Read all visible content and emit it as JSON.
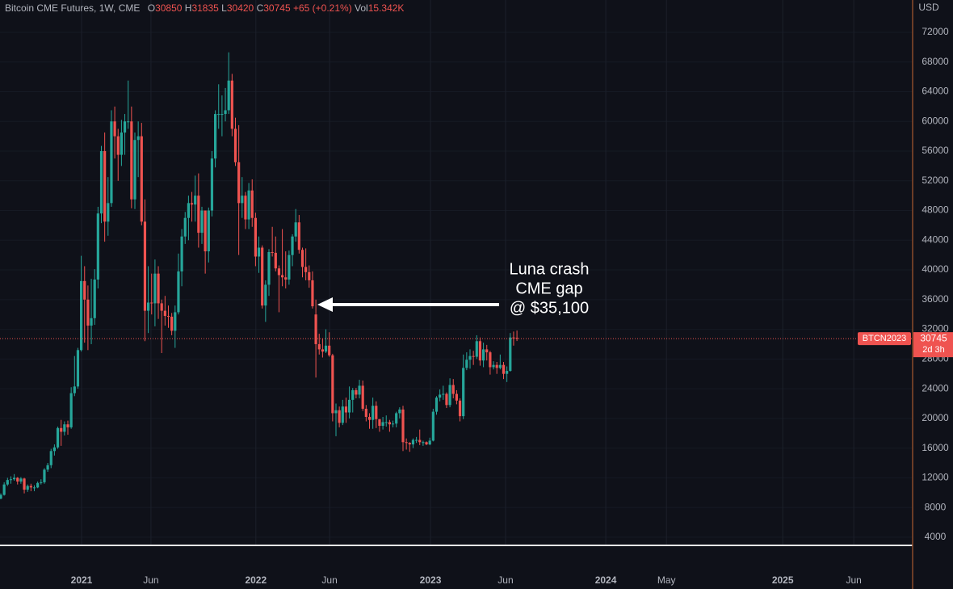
{
  "chart_data": {
    "type": "candlestick",
    "title": "Bitcoin CME Futures, 1W, CME",
    "ohlc_labels": [
      "O",
      "H",
      "L",
      "C"
    ],
    "change": "+65 (+0.21%)",
    "volume_label": "Vol",
    "volume": "15.342K",
    "currency": "USD",
    "symbol_label": "BTCN2023",
    "countdown": "2d 3h",
    "annotation": [
      "Luna crash",
      "CME gap",
      "@ $35,100"
    ],
    "up_color": "#26a69a",
    "down_color": "#ef5350",
    "grid": true,
    "open": [
      9200,
      9700,
      11100,
      11700,
      11800,
      12000,
      11500,
      11900,
      10400,
      10900,
      10700,
      10700,
      11300,
      11400,
      13100,
      13700,
      15600,
      16100,
      18700,
      18200,
      19200,
      18800,
      23400,
      24300,
      29200,
      38500,
      36000,
      32500,
      33500,
      38700,
      47600,
      56000,
      46500,
      49000,
      60000,
      58000,
      55500,
      58500,
      60000,
      60000,
      49500,
      57500,
      58000,
      46500,
      34500,
      35600,
      35500,
      39500,
      35500,
      34500,
      33800,
      33700,
      31800,
      34300,
      39800,
      44500,
      47000,
      49000,
      48800,
      50000,
      45000,
      48000,
      42500,
      48000,
      55000,
      61000,
      61000,
      61000,
      61500,
      65500,
      59000,
      54500,
      49000,
      50000,
      46800,
      50700,
      47000,
      41800,
      43000,
      35200,
      38000,
      42400,
      42300,
      40200,
      39300,
      39000,
      38700,
      42000,
      44500,
      46400,
      42700,
      40400,
      39700,
      38600,
      34000,
      30000,
      29300,
      29000,
      29800,
      28500,
      20700,
      21100,
      19400,
      21600,
      20800,
      22500,
      23800,
      23200,
      24400,
      21300,
      20200,
      19800,
      21700,
      19900,
      19000,
      19500,
      19500,
      19200,
      19300,
      20700,
      21200,
      16800,
      16700,
      16500,
      17100,
      17100,
      16800,
      16800,
      16500,
      17000,
      20900,
      22800,
      23200,
      23300,
      21800,
      24500,
      23300,
      22400,
      20300,
      26800,
      27900,
      28400,
      28300,
      30400,
      27800,
      29300,
      28900,
      26900,
      27200,
      26800,
      27200,
      26000,
      26400,
      30900,
      30850
    ],
    "high": [
      9900,
      11400,
      12000,
      12200,
      12500,
      12100,
      12100,
      12000,
      11100,
      11200,
      11000,
      11500,
      11800,
      13300,
      14000,
      15900,
      16500,
      18900,
      19800,
      19600,
      19700,
      24200,
      28400,
      29500,
      41900,
      40500,
      37900,
      38800,
      40100,
      48500,
      56700,
      58500,
      52500,
      61500,
      62000,
      59000,
      60200,
      61000,
      65500,
      62000,
      58500,
      60000,
      59800,
      49500,
      40500,
      39500,
      41400,
      40500,
      36000,
      36500,
      35200,
      34200,
      35200,
      42200,
      45500,
      47800,
      50000,
      50500,
      52700,
      53000,
      48500,
      48000,
      48400,
      56000,
      61500,
      65000,
      63500,
      64500,
      69300,
      66400,
      60500,
      59500,
      52500,
      50500,
      51700,
      52200,
      47700,
      44500,
      43300,
      38600,
      42800,
      45800,
      44500,
      40600,
      45500,
      42500,
      42600,
      44800,
      48200,
      47400,
      43000,
      42900,
      40600,
      39800,
      36000,
      31400,
      30800,
      32000,
      31600,
      28700,
      22000,
      21600,
      22500,
      22800,
      24300,
      24100,
      24100,
      25200,
      25100,
      21800,
      20700,
      22800,
      22300,
      19900,
      20200,
      20400,
      19800,
      19700,
      20900,
      21500,
      21700,
      17300,
      16800,
      17300,
      17500,
      18500,
      17000,
      16900,
      17400,
      21300,
      23000,
      23900,
      24400,
      23500,
      25400,
      25300,
      23800,
      22700,
      28600,
      28900,
      29300,
      29100,
      31200,
      30900,
      30200,
      29900,
      29100,
      27700,
      27600,
      28600,
      27600,
      27000,
      31500,
      31700,
      31835
    ],
    "low": [
      9100,
      9600,
      10900,
      11200,
      11600,
      11100,
      11200,
      9900,
      10100,
      10200,
      10200,
      10600,
      11100,
      11200,
      12800,
      13300,
      15000,
      15900,
      16300,
      17700,
      17800,
      18600,
      23000,
      24000,
      29000,
      30200,
      29200,
      30000,
      32600,
      37500,
      46300,
      43800,
      44600,
      48500,
      55000,
      52000,
      54000,
      55500,
      59000,
      48300,
      48200,
      52500,
      46000,
      30400,
      31500,
      34000,
      32400,
      33400,
      28800,
      32500,
      32200,
      31200,
      29500,
      34000,
      37800,
      43500,
      44000,
      46500,
      46500,
      43000,
      43500,
      39500,
      41000,
      47200,
      53800,
      59000,
      58000,
      60000,
      61000,
      58000,
      54000,
      42000,
      47000,
      45500,
      45500,
      45800,
      40500,
      39600,
      34800,
      33000,
      36500,
      41800,
      39800,
      34300,
      37800,
      37500,
      38000,
      40500,
      43800,
      42200,
      39000,
      38600,
      37600,
      34800,
      25500,
      28600,
      28200,
      28800,
      28300,
      19600,
      17600,
      18800,
      19100,
      19400,
      20000,
      20800,
      22700,
      22700,
      21000,
      19600,
      18600,
      18600,
      18700,
      18200,
      18500,
      18900,
      18200,
      18800,
      18800,
      20000,
      15600,
      15800,
      15500,
      16000,
      16700,
      16400,
      16300,
      16400,
      16400,
      16900,
      20500,
      22300,
      22500,
      21400,
      21500,
      22700,
      21900,
      19600,
      19900,
      26500,
      26700,
      27200,
      28000,
      27100,
      26900,
      27800,
      25900,
      26600,
      26000,
      26600,
      25300,
      24900,
      26300,
      29800,
      30420
    ],
    "close": [
      9700,
      11100,
      11700,
      11800,
      12000,
      11500,
      11900,
      10400,
      10900,
      10700,
      10700,
      11300,
      11400,
      13100,
      13700,
      15600,
      16100,
      18700,
      18200,
      19200,
      18800,
      23400,
      24300,
      29200,
      38500,
      36000,
      32500,
      33500,
      38700,
      47600,
      56000,
      46500,
      49000,
      60000,
      58000,
      55500,
      58500,
      60000,
      60000,
      49500,
      57500,
      58000,
      46500,
      34500,
      35600,
      35500,
      39500,
      35500,
      34500,
      33800,
      33700,
      31800,
      34300,
      39800,
      44500,
      47000,
      49000,
      48800,
      50000,
      45000,
      48000,
      42500,
      48000,
      55000,
      61000,
      61000,
      61000,
      61500,
      65500,
      59000,
      54500,
      49000,
      50000,
      46800,
      50700,
      47000,
      41800,
      43000,
      35200,
      38000,
      42400,
      42300,
      40200,
      39300,
      39000,
      38700,
      42000,
      44500,
      46400,
      42700,
      40400,
      39700,
      38600,
      35100,
      30000,
      29300,
      29000,
      29800,
      28500,
      20700,
      21100,
      19400,
      21600,
      20800,
      22500,
      23800,
      23200,
      24400,
      21300,
      20200,
      19800,
      21700,
      19900,
      19000,
      19500,
      19500,
      19200,
      19300,
      20700,
      21200,
      16800,
      16700,
      16500,
      17100,
      17100,
      16800,
      16800,
      16500,
      17000,
      20900,
      22800,
      23200,
      23300,
      21800,
      24500,
      23300,
      22400,
      20300,
      26800,
      27900,
      28400,
      28300,
      30400,
      27800,
      29300,
      28900,
      26900,
      27200,
      26800,
      27200,
      26000,
      26400,
      30900,
      30800,
      30745
    ],
    "xlim": [
      -0.24,
      272.05
    ],
    "xticks": [
      {
        "value": 24.1,
        "label": "2021"
      },
      {
        "value": 44.8,
        "label": "Jun"
      },
      {
        "value": 76.1,
        "label": "2022"
      },
      {
        "value": 98.1,
        "label": "Jun"
      },
      {
        "value": 128.2,
        "label": "2023"
      },
      {
        "value": 150.6,
        "label": "Jun"
      },
      {
        "value": 180.5,
        "label": "2024"
      },
      {
        "value": 198.6,
        "label": "May"
      },
      {
        "value": 233.3,
        "label": "2025"
      },
      {
        "value": 254.5,
        "label": "Jun"
      }
    ],
    "ylim": [
      2900,
      76350
    ],
    "yticks": [
      4000,
      8000,
      12000,
      16000,
      20000,
      24000,
      28000,
      32000,
      36000,
      40000,
      44000,
      48000,
      52000,
      56000,
      60000,
      64000,
      68000,
      72000
    ]
  }
}
